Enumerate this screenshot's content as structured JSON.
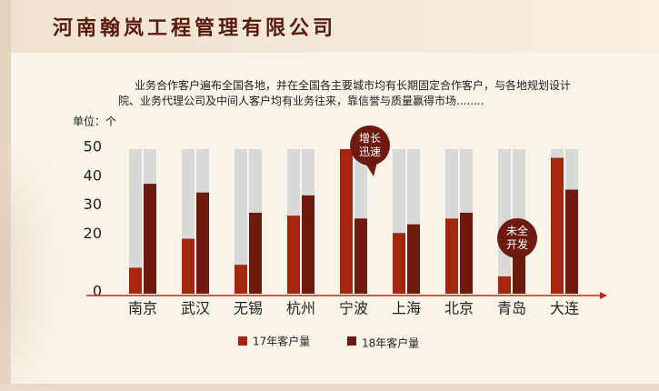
{
  "chart_data": {
    "type": "bar",
    "title": "河南翰岚工程管理有限公司",
    "subtitle": "业务合作客户遍布全国各地，并在全国各主要城市均有长期固定合作客户，与各地规划设计院、业务代理公司及中间人客户均有业务往来，靠信誉与质量赢得市场........",
    "y_label": "单位：个",
    "categories": [
      "南京",
      "武汉",
      "无锡",
      "杭州",
      "宁波",
      "上海",
      "北京",
      "青岛",
      "大连"
    ],
    "series": [
      {
        "name": "17年客户量",
        "color": "#a3260f",
        "values": [
          9,
          19,
          10,
          27,
          50,
          21,
          26,
          6,
          47
        ]
      },
      {
        "name": "18年客户量",
        "color": "#6e1a10",
        "values": [
          38,
          35,
          28,
          34,
          26,
          24,
          28,
          20,
          36
        ]
      }
    ],
    "background_color": "#d9d9d9",
    "ylim": [
      0,
      50
    ],
    "yticks": [
      0,
      20,
      30,
      40,
      50
    ],
    "annotations": [
      "增长迅速",
      "未全开发"
    ]
  }
}
